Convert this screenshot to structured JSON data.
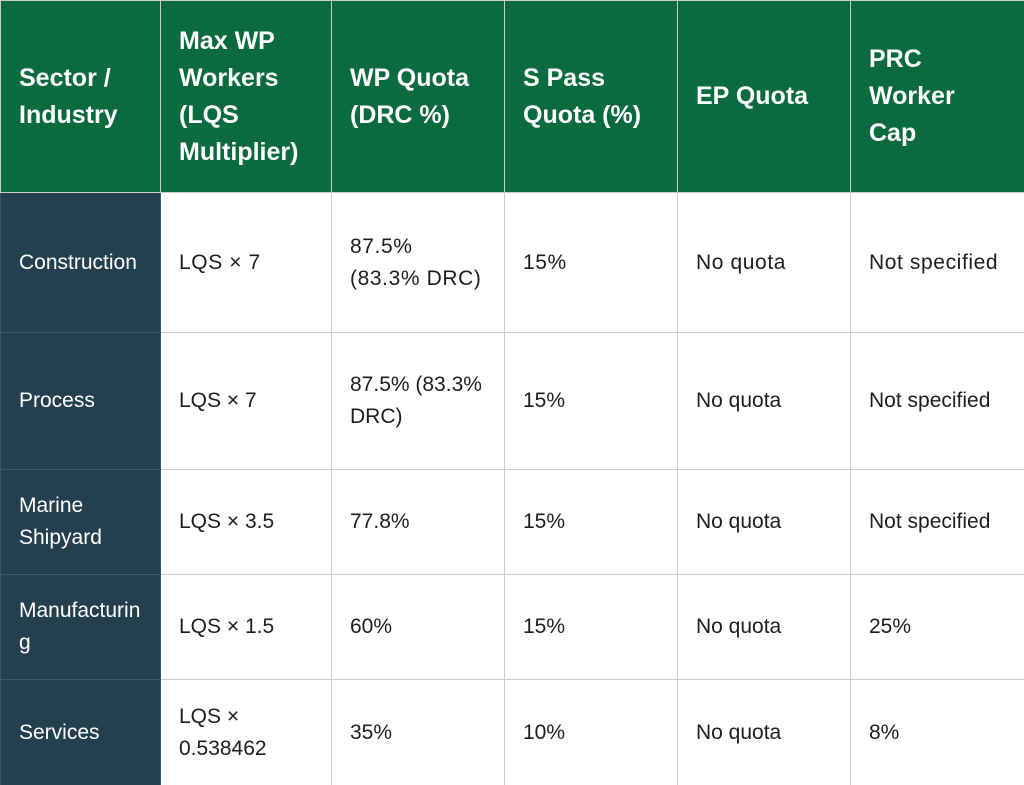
{
  "table": {
    "headers": [
      "Sector / Industry",
      "Max WP Workers (LQS Multiplier)",
      "WP Quota (DRC %)",
      "S Pass Quota (%)",
      "EP Quota",
      "PRC Worker Cap"
    ],
    "rows": [
      {
        "sector": "Construction",
        "max_wp": "LQS × 7",
        "wp_quota": "87.5% (83.3% DRC)",
        "s_pass": "15%",
        "ep_quota": "No quota",
        "prc_cap": "Not specified"
      },
      {
        "sector": "Process",
        "max_wp": "LQS × 7",
        "wp_quota": "87.5% (83.3% DRC)",
        "s_pass": "15%",
        "ep_quota": "No quota",
        "prc_cap": "Not specified"
      },
      {
        "sector": "Marine Shipyard",
        "max_wp": "LQS × 3.5",
        "wp_quota": "77.8%",
        "s_pass": "15%",
        "ep_quota": "No quota",
        "prc_cap": "Not specified"
      },
      {
        "sector": "Manufacturing",
        "max_wp": "LQS × 1.5",
        "wp_quota": "60%",
        "s_pass": "15%",
        "ep_quota": "No quota",
        "prc_cap": "25%"
      },
      {
        "sector": "Services",
        "max_wp": "LQS × 0.538462",
        "wp_quota": "35%",
        "s_pass": "10%",
        "ep_quota": "No quota",
        "prc_cap": "8%"
      }
    ]
  },
  "colors": {
    "header_bg": "#0b6b3f",
    "sector_bg": "#24404f",
    "cell_bg": "#ffffff",
    "text_dark": "#1e1e1e",
    "border": "#c9cfcc"
  }
}
